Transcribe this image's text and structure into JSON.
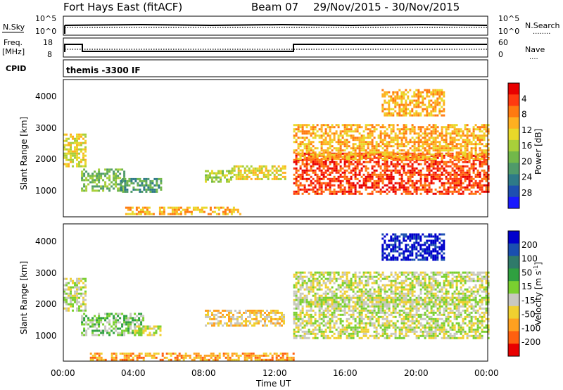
{
  "header": {
    "station": "Fort Hays East (fitACF)",
    "beam": "Beam 07",
    "dates": "29/Nov/2015 - 30/Nov/2015"
  },
  "noise_panel": {
    "left_label": "N.Sky",
    "right_label": "N.Search",
    "left_ticks": [
      "10^5",
      "10^0"
    ],
    "right_ticks": [
      "10^5",
      "10^0"
    ],
    "legend_swatch": "........"
  },
  "freq_panel": {
    "left_label_1": "Freq.",
    "left_label_2": "[MHz]",
    "right_label": "Nave",
    "left_ticks": [
      "18",
      "8"
    ],
    "right_ticks": [
      "60",
      "0"
    ],
    "legend_swatch": "...."
  },
  "cpid_panel": {
    "label": "CPID",
    "text": "themis -3300 IF"
  },
  "time_axis": {
    "title": "Time UT",
    "ticks": [
      "00:00",
      "04:00",
      "08:00",
      "12:00",
      "16:00",
      "20:00",
      "00:00"
    ]
  },
  "chart_data": [
    {
      "type": "heatmap",
      "name": "power",
      "ylabel": "Slant Range [km]",
      "yticks": [
        "1000",
        "2000",
        "3000",
        "4000"
      ],
      "ylim": [
        180,
        4500
      ],
      "xlim_hours": [
        0,
        24
      ],
      "colorbar_label": "Power [dB]",
      "colorbar_ticks": [
        "4",
        "8",
        "12",
        "16",
        "20",
        "24",
        "28"
      ],
      "colors": [
        "#1a1aff",
        "#1e4fb0",
        "#2e7a88",
        "#4f9a6a",
        "#72b84a",
        "#a8cf3a",
        "#e9d92a",
        "#ffb020",
        "#ff7a10",
        "#ff3a10",
        "#e80000"
      ],
      "regions": [
        {
          "t": [
            0.0,
            1.2
          ],
          "r": [
            1800,
            2800
          ],
          "level": 6
        },
        {
          "t": [
            1.0,
            3.5
          ],
          "r": [
            1000,
            1700
          ],
          "level": 4
        },
        {
          "t": [
            3.2,
            5.5
          ],
          "r": [
            1000,
            1400
          ],
          "level": 3
        },
        {
          "t": [
            3.5,
            10.0
          ],
          "r": [
            250,
            500
          ],
          "level": 7
        },
        {
          "t": [
            8.0,
            9.5
          ],
          "r": [
            1300,
            1650
          ],
          "level": 5
        },
        {
          "t": [
            9.5,
            12.5
          ],
          "r": [
            1350,
            1800
          ],
          "level": 6
        },
        {
          "t": [
            13.0,
            24.0
          ],
          "r": [
            900,
            2200
          ],
          "level": 9
        },
        {
          "t": [
            13.0,
            24.0
          ],
          "r": [
            2000,
            3100
          ],
          "level": 7
        },
        {
          "t": [
            18.0,
            21.5
          ],
          "r": [
            3400,
            4200
          ],
          "level": 7
        }
      ]
    },
    {
      "type": "heatmap",
      "name": "velocity",
      "ylabel": "Slant Range [km]",
      "yticks": [
        "1000",
        "2000",
        "3000",
        "4000"
      ],
      "ylim": [
        180,
        4500
      ],
      "xlim_hours": [
        0,
        24
      ],
      "colorbar_label": "Velocity [m s^-1]",
      "colorbar_ticks": [
        "200",
        "100",
        "50",
        "15",
        "-15",
        "-50",
        "-100",
        "-200"
      ],
      "colors": [
        "#0000cc",
        "#1a4fb0",
        "#2f7a6a",
        "#2fa040",
        "#7ad030",
        "#c8c8c0",
        "#f0d030",
        "#ffa020",
        "#ff6010",
        "#e80000"
      ],
      "regions": [
        {
          "t": [
            0.0,
            1.2
          ],
          "r": [
            1800,
            2800
          ],
          "level": 5
        },
        {
          "t": [
            1.0,
            4.5
          ],
          "r": [
            1000,
            1700
          ],
          "level": 4
        },
        {
          "t": [
            4.0,
            5.5
          ],
          "r": [
            1000,
            1300
          ],
          "level": 5
        },
        {
          "t": [
            1.5,
            13.0
          ],
          "r": [
            200,
            450
          ],
          "level": 7
        },
        {
          "t": [
            8.0,
            12.5
          ],
          "r": [
            1300,
            1800
          ],
          "level": 6
        },
        {
          "t": [
            13.0,
            24.0
          ],
          "r": [
            900,
            2200
          ],
          "level": 5
        },
        {
          "t": [
            13.0,
            24.0
          ],
          "r": [
            2000,
            3000
          ],
          "level": 5
        },
        {
          "t": [
            18.0,
            21.5
          ],
          "r": [
            3400,
            4200
          ],
          "level": 0
        }
      ]
    }
  ]
}
